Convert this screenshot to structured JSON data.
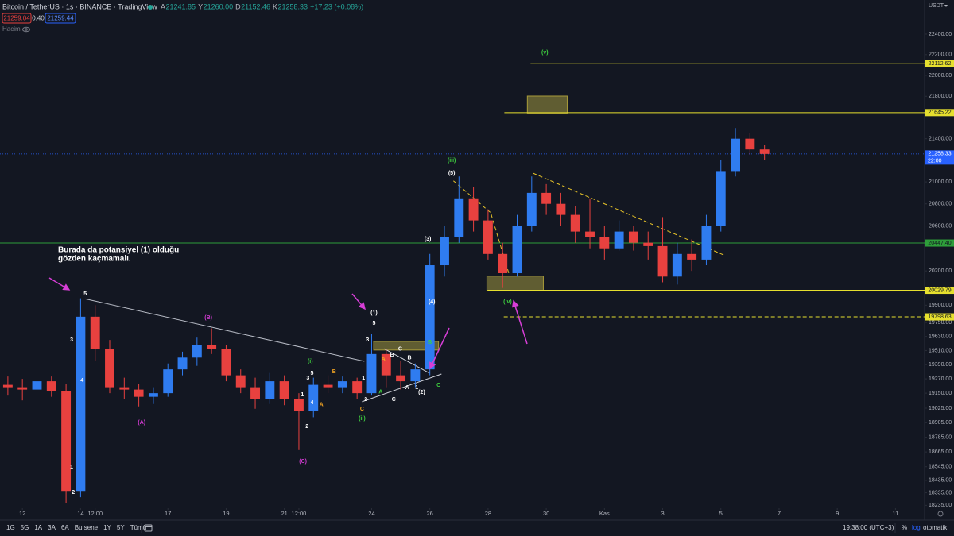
{
  "header": {
    "title": "Bitcoin / TetherUS · 1s · BINANCE · TradingView",
    "ohlc": [
      {
        "key": "A",
        "value": "21241.85"
      },
      {
        "key": "Y",
        "value": "21260.00"
      },
      {
        "key": "D",
        "value": "21152.46"
      },
      {
        "key": "K",
        "value": "21258.33"
      }
    ],
    "change": "+17.23 (+0.08%)",
    "sell": "21259.04",
    "spread": "0.40",
    "buy": "21259.44",
    "volume_label": "Hacim"
  },
  "price_axis": {
    "currency": "USDT"
  },
  "toolbar": {
    "ranges": [
      "1G",
      "5G",
      "1A",
      "3A",
      "6A",
      "Bu sene",
      "1Y",
      "5Y",
      "Tümü"
    ],
    "time": "19:38:00 (UTC+3)",
    "percent": "%",
    "log": "log",
    "auto": "otomatik"
  },
  "chart_data": {
    "type": "candlestick",
    "log_scale": true,
    "grid": false,
    "up_color": "#2f7cf0",
    "down_color": "#e8413f",
    "xlim": [
      11.23,
      43.0
    ],
    "ylim": [
      18212,
      22736
    ],
    "xticks": [
      12,
      14,
      {
        "value": 14.5,
        "label": "12:00"
      },
      17,
      19,
      21,
      {
        "value": 21.5,
        "label": "12:00"
      },
      24,
      26,
      28,
      30,
      {
        "value": 32,
        "label": "Kas"
      },
      {
        "value": 34,
        "label": "3"
      },
      {
        "value": 36,
        "label": "5"
      },
      {
        "value": 38,
        "label": "7"
      },
      {
        "value": 40,
        "label": "9"
      },
      {
        "value": 42,
        "label": "11"
      }
    ],
    "yticks": [
      {
        "value": 22400,
        "label": "22400.00"
      },
      {
        "value": 22200,
        "label": "22200.00"
      },
      {
        "value": 22000,
        "label": "22000.00"
      },
      {
        "value": 21800,
        "label": "21800.00"
      },
      {
        "value": 21400,
        "label": "21400.00"
      },
      {
        "value": 21000,
        "label": "21000.00"
      },
      {
        "value": 20800,
        "label": "20800.00"
      },
      {
        "value": 20600,
        "label": "20600.00"
      },
      {
        "value": 20200,
        "label": "20200.00"
      },
      {
        "value": 19900,
        "label": "19900.00"
      },
      {
        "value": 19750,
        "label": "19750.00"
      },
      {
        "value": 19630,
        "label": "19630.00"
      },
      {
        "value": 19510,
        "label": "19510.00"
      },
      {
        "value": 19390,
        "label": "19390.00"
      },
      {
        "value": 19270,
        "label": "19270.00"
      },
      {
        "value": 19150,
        "label": "19150.00"
      },
      {
        "value": 19025,
        "label": "19025.00"
      },
      {
        "value": 18905,
        "label": "18905.00"
      },
      {
        "value": 18785,
        "label": "18785.00"
      },
      {
        "value": 18665,
        "label": "18665.00"
      },
      {
        "value": 18545,
        "label": "18545.00"
      },
      {
        "value": 18435,
        "label": "18435.00"
      },
      {
        "value": 18335,
        "label": "18335.00"
      },
      {
        "value": 18235,
        "label": "18235.00"
      }
    ],
    "x": [
      11.5,
      12,
      12.5,
      13,
      13.5,
      14,
      14.5,
      15,
      15.5,
      16,
      16.5,
      17,
      17.5,
      18,
      18.5,
      19,
      19.5,
      20,
      20.5,
      21,
      21.5,
      22,
      22.5,
      23,
      23.5,
      24,
      24.5,
      25,
      25.5,
      26,
      26.5,
      27,
      27.5,
      28,
      28.5,
      29,
      29.5,
      30,
      30.5,
      31,
      31.5,
      32,
      32.5,
      33,
      33.5,
      34,
      34.5,
      35,
      35.5,
      36,
      36.5,
      37,
      37.5
    ],
    "open": [
      19220,
      19200,
      19180,
      19250,
      19170,
      18350,
      19800,
      19520,
      19200,
      19180,
      19120,
      19150,
      19350,
      19450,
      19560,
      19520,
      19300,
      19200,
      19100,
      19250,
      19100,
      19000,
      19220,
      19200,
      19250,
      19150,
      19480,
      19300,
      19250,
      19350,
      20250,
      20500,
      20850,
      20650,
      20350,
      20180,
      20600,
      20900,
      20800,
      20700,
      20550,
      20500,
      20400,
      20550,
      20450,
      20420,
      20150,
      20350,
      20300,
      20600,
      21100,
      21400,
      21300
    ],
    "high": [
      19290,
      19270,
      19300,
      19290,
      19230,
      19960,
      19900,
      19600,
      19280,
      19230,
      19200,
      19400,
      19500,
      19620,
      19700,
      19560,
      19350,
      19280,
      19320,
      19300,
      19150,
      19280,
      19300,
      19290,
      19280,
      19650,
      19520,
      19420,
      19400,
      20350,
      20600,
      21050,
      20950,
      20750,
      20450,
      20700,
      21050,
      20980,
      20900,
      20780,
      20850,
      20600,
      20650,
      20600,
      20550,
      20680,
      20450,
      20480,
      20700,
      21200,
      21500,
      21450,
      21340
    ],
    "low": [
      19130,
      19090,
      19140,
      19120,
      18250,
      18300,
      19420,
      19150,
      19100,
      19040,
      19060,
      19120,
      19300,
      19380,
      19480,
      19250,
      19150,
      19020,
      19060,
      19050,
      18680,
      18950,
      19150,
      19150,
      19100,
      19130,
      19200,
      19180,
      19200,
      19300,
      20150,
      20450,
      20550,
      20300,
      20050,
      20150,
      20550,
      20700,
      20600,
      20450,
      20400,
      20300,
      20380,
      20380,
      20300,
      20100,
      20080,
      20200,
      20250,
      20550,
      21050,
      21250,
      21200
    ],
    "close": [
      19200,
      19180,
      19250,
      19170,
      18350,
      19800,
      19520,
      19200,
      19180,
      19120,
      19150,
      19350,
      19450,
      19560,
      19520,
      19300,
      19200,
      19100,
      19250,
      19100,
      19000,
      19220,
      19200,
      19250,
      19150,
      19480,
      19300,
      19250,
      19350,
      20250,
      20500,
      20850,
      20650,
      20350,
      20180,
      20600,
      20900,
      20800,
      20700,
      20550,
      20500,
      20400,
      20550,
      20450,
      20420,
      20150,
      20350,
      20300,
      20600,
      21100,
      21400,
      21300,
      21258.33
    ],
    "levels": [
      {
        "value": 22112.62,
        "from": 29.46,
        "color": "#e6df2e",
        "style": "solid"
      },
      {
        "value": 21645.22,
        "from": 28.56,
        "color": "#e6df2e",
        "style": "solid"
      },
      {
        "value": 21258.33,
        "sublabel": "22:00",
        "color": "#2962ff",
        "style": "dotted"
      },
      {
        "value": 20447.4,
        "label": "20447.40",
        "color": "#2e9e3a",
        "style": "solid"
      },
      {
        "value": 20029.79,
        "from": 27.98,
        "color": "#e6df2e",
        "style": "solid"
      },
      {
        "value": 19798.63,
        "from": 28.54,
        "color": "#e6df2e",
        "style": "dashed"
      }
    ],
    "zones": [
      {
        "from": 29.35,
        "to": 30.72,
        "top": 21802,
        "bottom": 21641
      },
      {
        "from": 27.96,
        "to": 29.9,
        "top": 20154,
        "bottom": 20025
      },
      {
        "from": 24.07,
        "to": 26.3,
        "top": 19588,
        "bottom": 19514
      }
    ],
    "trendlines": [
      {
        "points": [
          [
            14.16,
            19955
          ],
          [
            23.75,
            19418
          ]
        ],
        "color": "#b8bcc6",
        "style": "solid"
      },
      {
        "points": [
          [
            29.54,
            21081
          ],
          [
            36.15,
            20335
          ]
        ],
        "color": "#e6c229",
        "style": "dashed"
      },
      {
        "points": [
          [
            26.81,
            21010
          ],
          [
            28.09,
            20720
          ],
          [
            28.72,
            20173
          ]
        ],
        "color": "#e6c229",
        "style": "dashed"
      },
      {
        "points": [
          [
            23.67,
            19079
          ],
          [
            26.4,
            19311
          ]
        ],
        "color": "#d1d4dc",
        "style": "solid"
      },
      {
        "points": [
          [
            24.43,
            19525
          ],
          [
            25.99,
            19318
          ]
        ],
        "color": "#d1d4dc",
        "style": "solid"
      }
    ],
    "annotations": [
      {
        "text": "5",
        "day": 14.16,
        "price": 19999,
        "color": "#ffffff"
      },
      {
        "text": "3",
        "day": 13.69,
        "price": 19600,
        "color": "#ffffff"
      },
      {
        "text": "4",
        "day": 14.05,
        "price": 19257,
        "color": "#ffffff"
      },
      {
        "text": "1",
        "day": 13.69,
        "price": 18543,
        "color": "#ffffff"
      },
      {
        "text": "2",
        "day": 13.75,
        "price": 18339,
        "color": "#ffffff"
      },
      {
        "text": "(A)",
        "day": 16.1,
        "price": 18906,
        "color": "#d23bd2"
      },
      {
        "text": "(B)",
        "day": 18.39,
        "price": 19791,
        "color": "#d23bd2"
      },
      {
        "text": "(C)",
        "day": 21.64,
        "price": 18588,
        "color": "#d23bd2"
      },
      {
        "text": "(i)",
        "day": 21.89,
        "price": 19418,
        "color": "#3fd13f"
      },
      {
        "text": "5",
        "day": 21.95,
        "price": 19318,
        "color": "#ffffff"
      },
      {
        "text": "3",
        "day": 21.81,
        "price": 19278,
        "color": "#ffffff"
      },
      {
        "text": "1",
        "day": 21.62,
        "price": 19138,
        "color": "#ffffff"
      },
      {
        "text": "4",
        "day": 21.95,
        "price": 19069,
        "color": "#ffffff"
      },
      {
        "text": "A",
        "day": 22.27,
        "price": 19055,
        "color": "#f5a623"
      },
      {
        "text": "B",
        "day": 22.71,
        "price": 19331,
        "color": "#f5a623"
      },
      {
        "text": "2",
        "day": 21.78,
        "price": 18874,
        "color": "#ffffff"
      },
      {
        "text": "1",
        "day": 23.72,
        "price": 19278,
        "color": "#ffffff"
      },
      {
        "text": "3",
        "day": 23.86,
        "price": 19600,
        "color": "#ffffff"
      },
      {
        "text": "(1)",
        "day": 24.08,
        "price": 19833,
        "color": "#ffffff"
      },
      {
        "text": "5",
        "day": 24.08,
        "price": 19743,
        "color": "#ffffff"
      },
      {
        "text": "2",
        "day": 23.8,
        "price": 19098,
        "color": "#ffffff"
      },
      {
        "text": "C",
        "day": 23.67,
        "price": 19017,
        "color": "#f5a623"
      },
      {
        "text": "(ii)",
        "day": 23.67,
        "price": 18939,
        "color": "#3fd13f"
      },
      {
        "text": "A",
        "day": 24.4,
        "price": 19438,
        "color": "#f5a623"
      },
      {
        "text": "B",
        "day": 24.7,
        "price": 19471,
        "color": "#ffffff"
      },
      {
        "text": "C",
        "day": 24.98,
        "price": 19521,
        "color": "#ffffff"
      },
      {
        "text": "B",
        "day": 25.3,
        "price": 19446,
        "color": "#ffffff"
      },
      {
        "text": "A",
        "day": 25.22,
        "price": 19195,
        "color": "#ffffff"
      },
      {
        "text": "C",
        "day": 24.76,
        "price": 19098,
        "color": "#ffffff"
      },
      {
        "text": "1",
        "day": 25.55,
        "price": 19195,
        "color": "#ffffff"
      },
      {
        "text": "A",
        "day": 24.31,
        "price": 19160,
        "color": "#3fd13f"
      },
      {
        "text": "B",
        "day": 26.0,
        "price": 19580,
        "color": "#3fd13f"
      },
      {
        "text": "C",
        "day": 26.3,
        "price": 19215,
        "color": "#3fd13f"
      },
      {
        "text": "(2)",
        "day": 25.72,
        "price": 19157,
        "color": "#ffffff"
      },
      {
        "text": "(3)",
        "day": 25.93,
        "price": 20483,
        "color": "#ffffff"
      },
      {
        "text": "(4)",
        "day": 26.07,
        "price": 19929,
        "color": "#ffffff"
      },
      {
        "text": "(5)",
        "day": 26.75,
        "price": 21081,
        "color": "#ffffff"
      },
      {
        "text": "(iii)",
        "day": 26.75,
        "price": 21199,
        "color": "#3fd13f"
      },
      {
        "text": "(iv)",
        "day": 28.67,
        "price": 19929,
        "color": "#3fd13f"
      },
      {
        "text": "(v)",
        "day": 29.95,
        "price": 22221,
        "color": "#3fd13f"
      }
    ],
    "note": [
      "Burada da potansiyel (1) olduğu",
      "gözden kaçmamalı."
    ]
  }
}
